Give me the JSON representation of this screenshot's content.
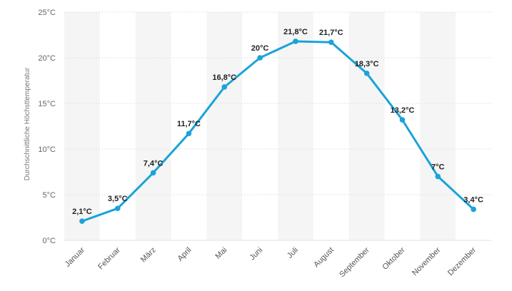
{
  "chart_data": {
    "type": "line",
    "title": "",
    "xlabel": "",
    "ylabel": "Durchschnittliche Höchsttemperatur",
    "categories": [
      "Januar",
      "Februar",
      "März",
      "April",
      "Mai",
      "Juni",
      "Juli",
      "August",
      "September",
      "Oktober",
      "November",
      "Dezember"
    ],
    "series": [
      {
        "values": [
          2.1,
          3.5,
          7.4,
          11.7,
          16.8,
          20,
          21.8,
          21.7,
          18.3,
          13.2,
          7,
          3.4
        ],
        "labels": [
          "2,1°C",
          "3,5°C",
          "7,4°C",
          "11,7°C",
          "16,8°C",
          "20°C",
          "21,8°C",
          "21,7°C",
          "18,3°C",
          "13,2°C",
          "7°C",
          "3,4°C"
        ]
      }
    ],
    "ylim": [
      0,
      25
    ],
    "yticks": [
      0,
      5,
      10,
      15,
      20,
      25
    ],
    "ytick_labels": [
      "0°C",
      "5°C",
      "10°C",
      "15°C",
      "20°C",
      "25°C"
    ],
    "grid": true,
    "legend": "none",
    "colors": {
      "line": "#1aa3d9",
      "band_light": "#f5f5f5",
      "band_white": "#ffffff",
      "gridline": "#e2e2e2"
    }
  }
}
